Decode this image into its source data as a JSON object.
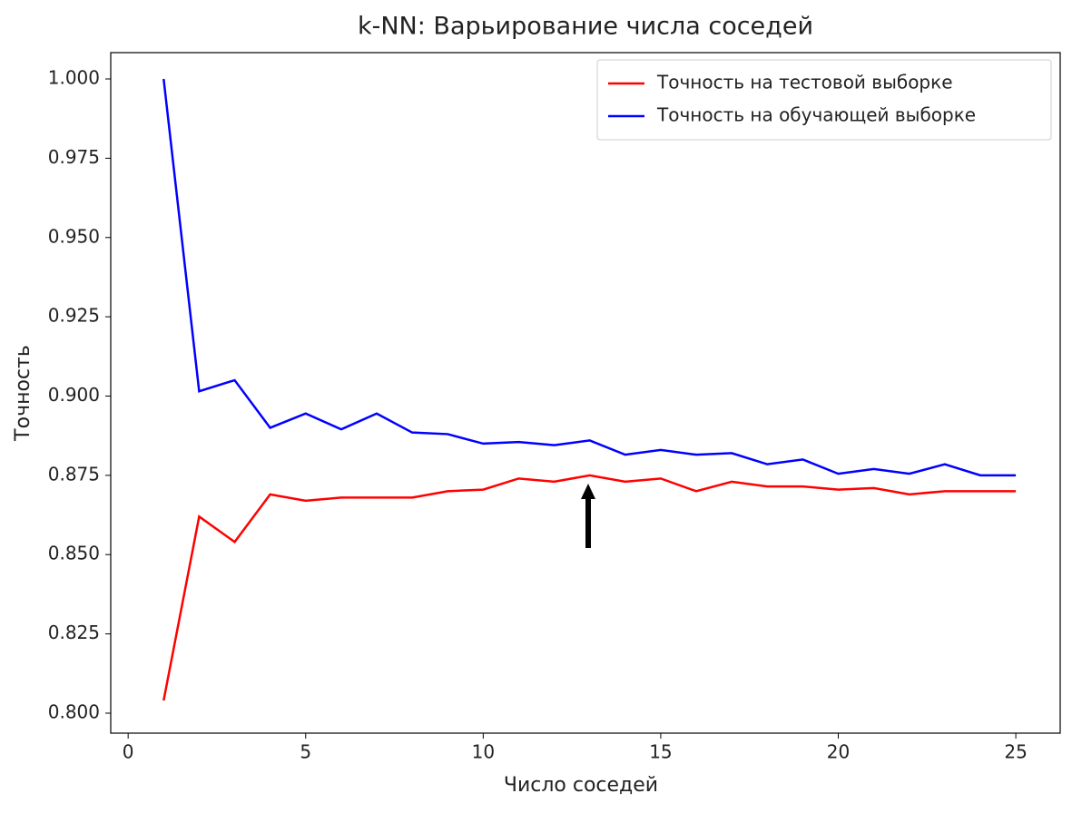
{
  "chart_data": {
    "type": "line",
    "title": "k-NN: Варьирование числа соседей",
    "x_label": "Число соседей",
    "y_label": "Точность",
    "x": [
      1,
      2,
      3,
      4,
      5,
      6,
      7,
      8,
      9,
      10,
      11,
      12,
      13,
      14,
      15,
      16,
      17,
      18,
      19,
      20,
      21,
      22,
      23,
      24,
      25
    ],
    "series": [
      {
        "name": "Точность на тестовой выборке",
        "color": "#ff0000",
        "values": [
          0.804,
          0.862,
          0.854,
          0.869,
          0.867,
          0.868,
          0.868,
          0.868,
          0.87,
          0.8705,
          0.874,
          0.873,
          0.875,
          0.873,
          0.874,
          0.87,
          0.873,
          0.8715,
          0.8715,
          0.8705,
          0.871,
          0.869,
          0.87,
          0.87,
          0.87
        ]
      },
      {
        "name": "Точность на обучающей выборке",
        "color": "#0000ff",
        "values": [
          1.0,
          0.9015,
          0.905,
          0.89,
          0.8945,
          0.8895,
          0.8945,
          0.8885,
          0.888,
          0.885,
          0.8855,
          0.8845,
          0.886,
          0.8815,
          0.883,
          0.8815,
          0.882,
          0.8785,
          0.88,
          0.8755,
          0.877,
          0.8755,
          0.8785,
          0.875,
          0.875
        ]
      }
    ],
    "xlim": [
      -0.49,
      26.25
    ],
    "ylim": [
      0.7937,
      1.0083
    ],
    "xticks": [
      0,
      5,
      10,
      15,
      20,
      25
    ],
    "yticks": [
      {
        "value": 0.8,
        "label": "0.800"
      },
      {
        "value": 0.825,
        "label": "0.825"
      },
      {
        "value": 0.85,
        "label": "0.850"
      },
      {
        "value": 0.875,
        "label": "0.875"
      },
      {
        "value": 0.9,
        "label": "0.900"
      },
      {
        "value": 0.925,
        "label": "0.925"
      },
      {
        "value": 0.95,
        "label": "0.950"
      },
      {
        "value": 0.975,
        "label": "0.975"
      },
      {
        "value": 1.0,
        "label": "1.000"
      }
    ],
    "legend": "upper right",
    "grid": false
  }
}
